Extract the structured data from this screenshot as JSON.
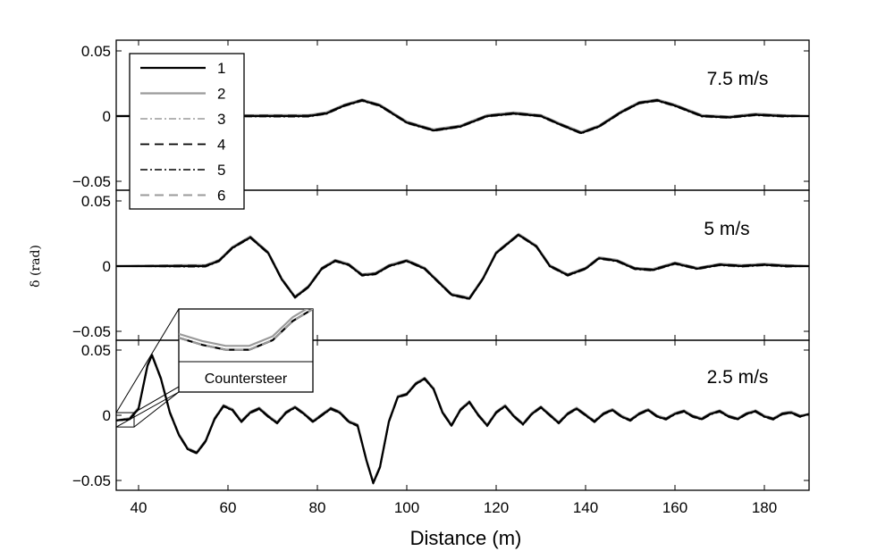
{
  "chart_data": {
    "type": "line",
    "xlabel": "Distance (m)",
    "ylabel": "δ (rad)",
    "xlim": [
      35,
      190
    ],
    "xticks": [
      40,
      60,
      80,
      100,
      120,
      140,
      160,
      180
    ],
    "legend": {
      "placement": "top-left",
      "entries": [
        {
          "name": "1",
          "color": "#000000",
          "style": "solid"
        },
        {
          "name": "2",
          "color": "#9a9a9a",
          "style": "solid"
        },
        {
          "name": "3",
          "color": "#9a9a9a",
          "style": "dashdot"
        },
        {
          "name": "4",
          "color": "#000000",
          "style": "dashed"
        },
        {
          "name": "5",
          "color": "#000000",
          "style": "dashdot"
        },
        {
          "name": "6",
          "color": "#9a9a9a",
          "style": "dashed"
        }
      ]
    },
    "panels": [
      {
        "label": "7.5 m/s",
        "ylim": [
          -0.06,
          0.06
        ],
        "yticks": [
          0.05,
          0,
          -0.05
        ],
        "ytick_labels": [
          "0.05",
          "0",
          "−0.05"
        ],
        "x": [
          35,
          70,
          78,
          82,
          86,
          90,
          94,
          100,
          106,
          112,
          118,
          124,
          130,
          134,
          139,
          143,
          148,
          152,
          156,
          160,
          166,
          172,
          178,
          184,
          190
        ],
        "y": [
          0,
          0,
          0,
          0.002,
          0.008,
          0.012,
          0.008,
          -0.005,
          -0.011,
          -0.008,
          0.0,
          0.002,
          0.0,
          -0.006,
          -0.013,
          -0.008,
          0.003,
          0.01,
          0.012,
          0.008,
          0.0,
          -0.001,
          0.001,
          0.0,
          0.0
        ]
      },
      {
        "label": "5 m/s",
        "ylim": [
          -0.06,
          0.06
        ],
        "yticks": [
          0.05,
          0,
          -0.05
        ],
        "ytick_labels": [
          "0.05",
          "0",
          "−0.05"
        ],
        "x": [
          35,
          50,
          55,
          58,
          61,
          65,
          69,
          72,
          75,
          78,
          81,
          84,
          87,
          90,
          93,
          96,
          100,
          104,
          107,
          110,
          114,
          117,
          120,
          125,
          129,
          132,
          136,
          140,
          143,
          147,
          151,
          155,
          160,
          165,
          170,
          175,
          180,
          185,
          190
        ],
        "y": [
          0,
          0,
          0,
          0.004,
          0.014,
          0.022,
          0.01,
          -0.01,
          -0.024,
          -0.016,
          -0.002,
          0.004,
          0.001,
          -0.007,
          -0.006,
          0.0,
          0.004,
          -0.002,
          -0.012,
          -0.022,
          -0.025,
          -0.01,
          0.01,
          0.024,
          0.015,
          0.0,
          -0.007,
          -0.002,
          0.006,
          0.004,
          -0.002,
          -0.003,
          0.002,
          -0.002,
          0.001,
          0.0,
          0.001,
          0.0,
          0.0
        ]
      },
      {
        "label": "2.5 m/s",
        "ylim": [
          -0.06,
          0.06
        ],
        "yticks": [
          0.05,
          0,
          -0.05
        ],
        "ytick_labels": [
          "0.05",
          "0",
          "−0.05"
        ],
        "x": [
          35,
          38,
          40,
          42,
          43,
          45,
          47,
          49,
          51,
          53,
          55,
          57,
          59,
          61,
          63,
          65,
          67,
          69,
          71,
          73,
          75,
          77,
          79,
          81,
          83,
          85,
          87,
          89,
          91,
          92.5,
          94,
          96,
          98,
          100,
          102,
          104,
          106,
          108,
          110,
          112,
          114,
          116,
          118,
          120,
          122,
          124,
          126,
          128,
          130,
          132,
          134,
          136,
          138,
          140,
          142,
          144,
          146,
          148,
          150,
          152,
          154,
          156,
          158,
          160,
          162,
          164,
          166,
          168,
          170,
          172,
          174,
          176,
          178,
          180,
          182,
          184,
          186,
          188,
          190
        ],
        "y": [
          -0.004,
          -0.003,
          0.005,
          0.038,
          0.046,
          0.028,
          0.002,
          -0.015,
          -0.026,
          -0.029,
          -0.02,
          -0.003,
          0.007,
          0.004,
          -0.005,
          0.002,
          0.005,
          -0.001,
          -0.006,
          0.002,
          0.006,
          0.001,
          -0.005,
          0.0,
          0.005,
          0.002,
          -0.005,
          -0.008,
          -0.035,
          -0.052,
          -0.04,
          -0.005,
          0.014,
          0.016,
          0.024,
          0.028,
          0.02,
          0.002,
          -0.008,
          0.004,
          0.01,
          0.0,
          -0.008,
          0.002,
          0.007,
          -0.001,
          -0.007,
          0.001,
          0.006,
          0.0,
          -0.006,
          0.001,
          0.005,
          0.0,
          -0.005,
          0.001,
          0.004,
          -0.001,
          -0.004,
          0.001,
          0.004,
          -0.001,
          -0.003,
          0.001,
          0.003,
          -0.001,
          -0.003,
          0.001,
          0.003,
          -0.001,
          -0.003,
          0.001,
          0.003,
          -0.001,
          -0.003,
          0.001,
          0.002,
          -0.001,
          0.001
        ],
        "inset": {
          "label": "Countersteer",
          "xlim": [
            35,
            39
          ],
          "ylim": [
            -0.009,
            0.002
          ],
          "x": [
            35,
            35.7,
            36.4,
            37.1,
            37.8,
            38.4,
            39
          ],
          "y": [
            -0.004,
            -0.0055,
            -0.0065,
            -0.0065,
            -0.0045,
            -0.0005,
            0.002
          ]
        }
      }
    ]
  }
}
